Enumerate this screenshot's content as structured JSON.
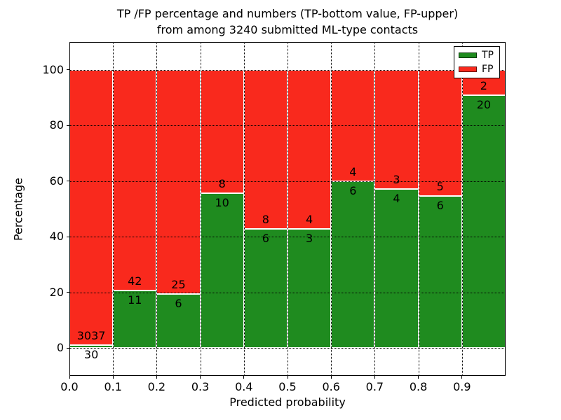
{
  "title_line1": "TP /FP percentage and numbers (TP-bottom value, FP-upper)",
  "title_line2": "from among 3240 submitted ML-type contacts",
  "total_contacts": 3240,
  "colors": {
    "tp": "#1f8b1f",
    "fp": "#f9291d",
    "grid": "#000000",
    "bar_edge": "#ffffff"
  },
  "chart_data": {
    "type": "bar",
    "stacked": true,
    "normalized_to_percent": true,
    "title": "TP /FP percentage and numbers (TP-bottom value, FP-upper) from among 3240 submitted ML-type contacts",
    "xlabel": "Predicted probability",
    "ylabel": "Percentage",
    "xlim": [
      0.0,
      1.0
    ],
    "ylim": [
      -10,
      110
    ],
    "grid": true,
    "legend_position": "upper right",
    "x_tick_labels": [
      "0.0",
      "0.1",
      "0.2",
      "0.3",
      "0.4",
      "0.5",
      "0.6",
      "0.7",
      "0.8",
      "0.9"
    ],
    "x_tick_values": [
      0.0,
      0.1,
      0.2,
      0.3,
      0.4,
      0.5,
      0.6,
      0.7,
      0.8,
      0.9
    ],
    "y_tick_labels": [
      "0",
      "20",
      "40",
      "60",
      "80",
      "100"
    ],
    "y_tick_values": [
      0,
      20,
      40,
      60,
      80,
      100
    ],
    "legend": [
      {
        "label": "TP",
        "color": "#1f8b1f"
      },
      {
        "label": "FP",
        "color": "#f9291d"
      }
    ],
    "bins": [
      {
        "x0": 0.0,
        "x1": 0.1,
        "tp": 30,
        "fp": 3037,
        "tp_pct": 1.0,
        "fp_pct": 99.0
      },
      {
        "x0": 0.1,
        "x1": 0.2,
        "tp": 11,
        "fp": 42,
        "tp_pct": 20.8,
        "fp_pct": 79.2
      },
      {
        "x0": 0.2,
        "x1": 0.3,
        "tp": 6,
        "fp": 25,
        "tp_pct": 19.4,
        "fp_pct": 80.6
      },
      {
        "x0": 0.3,
        "x1": 0.4,
        "tp": 10,
        "fp": 8,
        "tp_pct": 55.6,
        "fp_pct": 44.4
      },
      {
        "x0": 0.4,
        "x1": 0.5,
        "tp": 6,
        "fp": 8,
        "tp_pct": 42.9,
        "fp_pct": 57.1
      },
      {
        "x0": 0.5,
        "x1": 0.6,
        "tp": 3,
        "fp": 4,
        "tp_pct": 42.9,
        "fp_pct": 57.1
      },
      {
        "x0": 0.6,
        "x1": 0.7,
        "tp": 6,
        "fp": 4,
        "tp_pct": 60.0,
        "fp_pct": 40.0
      },
      {
        "x0": 0.7,
        "x1": 0.8,
        "tp": 4,
        "fp": 3,
        "tp_pct": 57.1,
        "fp_pct": 42.9
      },
      {
        "x0": 0.8,
        "x1": 0.9,
        "tp": 6,
        "fp": 5,
        "tp_pct": 54.5,
        "fp_pct": 45.5
      },
      {
        "x0": 0.9,
        "x1": 1.0,
        "tp": 20,
        "fp": 2,
        "tp_pct": 90.9,
        "fp_pct": 9.1
      }
    ]
  }
}
